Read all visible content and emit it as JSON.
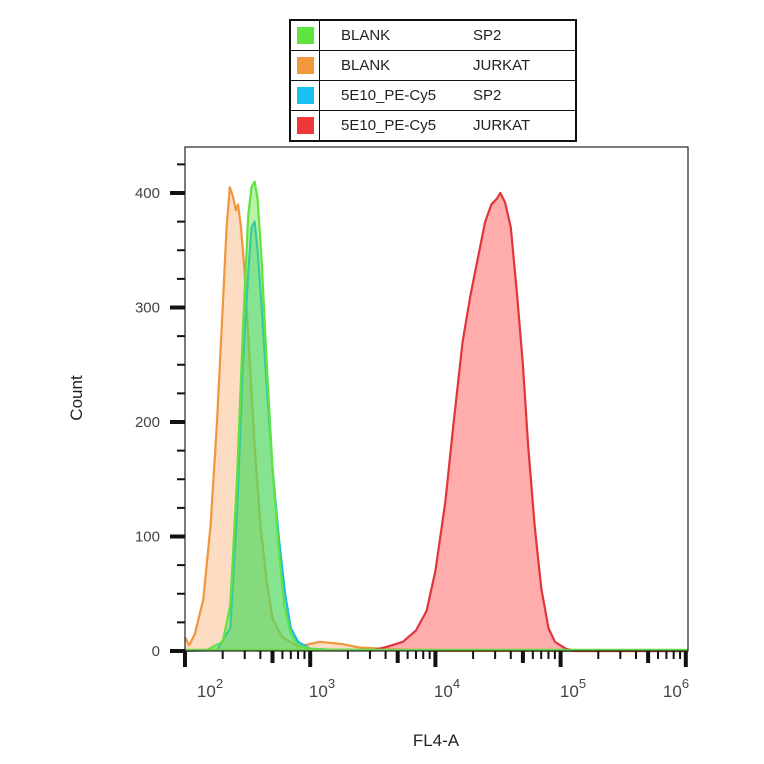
{
  "chart_data": {
    "type": "area",
    "title": "",
    "xlabel": "FL4-A",
    "ylabel": "Count",
    "xscale": "log",
    "xlim": [
      100,
      1000000
    ],
    "ylim": [
      0,
      440
    ],
    "x_ticks": [
      "10^2",
      "10^3",
      "10^4",
      "10^5",
      "10^6"
    ],
    "y_ticks": [
      0,
      100,
      200,
      300,
      400
    ],
    "grid": false,
    "legend_position": "top",
    "series": [
      {
        "name": "BLANK SP2",
        "sample": "BLANK",
        "cell": "SP2",
        "color": "#5FE33F",
        "fill": "rgba(95,227,63,0.45)",
        "points": [
          [
            100,
            0
          ],
          [
            150,
            1
          ],
          [
            200,
            8
          ],
          [
            230,
            40
          ],
          [
            260,
            150
          ],
          [
            290,
            280
          ],
          [
            320,
            380
          ],
          [
            340,
            405
          ],
          [
            360,
            410
          ],
          [
            380,
            395
          ],
          [
            410,
            340
          ],
          [
            450,
            250
          ],
          [
            500,
            160
          ],
          [
            560,
            90
          ],
          [
            620,
            40
          ],
          [
            700,
            15
          ],
          [
            800,
            5
          ],
          [
            1000,
            2
          ],
          [
            1500,
            1
          ],
          [
            3000,
            1
          ],
          [
            1000000,
            0
          ]
        ]
      },
      {
        "name": "BLANK JURKAT",
        "sample": "BLANK",
        "cell": "JURKAT",
        "color": "#F0963C",
        "fill": "rgba(250,185,135,0.5)",
        "points": [
          [
            100,
            12
          ],
          [
            108,
            5
          ],
          [
            120,
            15
          ],
          [
            140,
            45
          ],
          [
            160,
            110
          ],
          [
            180,
            200
          ],
          [
            200,
            300
          ],
          [
            215,
            370
          ],
          [
            228,
            405
          ],
          [
            240,
            398
          ],
          [
            255,
            385
          ],
          [
            265,
            390
          ],
          [
            280,
            370
          ],
          [
            300,
            330
          ],
          [
            330,
            250
          ],
          [
            360,
            180
          ],
          [
            400,
            110
          ],
          [
            450,
            60
          ],
          [
            500,
            28
          ],
          [
            600,
            12
          ],
          [
            800,
            4
          ],
          [
            1200,
            8
          ],
          [
            1800,
            6
          ],
          [
            2500,
            3
          ],
          [
            4000,
            2
          ],
          [
            10000,
            0
          ],
          [
            1000000,
            0
          ]
        ]
      },
      {
        "name": "5E10_PE-Cy5 SP2",
        "sample": "5E10_PE-Cy5",
        "cell": "SP2",
        "color": "#1EB7E8",
        "fill": "rgba(60,200,160,0.45)",
        "points": [
          [
            100,
            0
          ],
          [
            180,
            1
          ],
          [
            230,
            20
          ],
          [
            260,
            120
          ],
          [
            290,
            250
          ],
          [
            320,
            330
          ],
          [
            340,
            370
          ],
          [
            360,
            375
          ],
          [
            380,
            350
          ],
          [
            410,
            300
          ],
          [
            450,
            230
          ],
          [
            500,
            160
          ],
          [
            560,
            100
          ],
          [
            630,
            50
          ],
          [
            700,
            20
          ],
          [
            800,
            8
          ],
          [
            1000,
            2
          ],
          [
            1500,
            1
          ],
          [
            1000000,
            0
          ]
        ]
      },
      {
        "name": "5E10_PE-Cy5 JURKAT",
        "sample": "5E10_PE-Cy5",
        "cell": "JURKAT",
        "color": "#E0353A",
        "fill": "rgba(255,140,140,0.72)",
        "points": [
          [
            3000,
            0
          ],
          [
            4200,
            4
          ],
          [
            5500,
            8
          ],
          [
            7000,
            18
          ],
          [
            8500,
            35
          ],
          [
            10000,
            70
          ],
          [
            12000,
            130
          ],
          [
            14000,
            200
          ],
          [
            16500,
            270
          ],
          [
            19000,
            310
          ],
          [
            22000,
            345
          ],
          [
            25000,
            375
          ],
          [
            28000,
            390
          ],
          [
            31000,
            395
          ],
          [
            33000,
            400
          ],
          [
            36000,
            392
          ],
          [
            40000,
            370
          ],
          [
            45000,
            310
          ],
          [
            50000,
            250
          ],
          [
            55000,
            180
          ],
          [
            62000,
            110
          ],
          [
            70000,
            55
          ],
          [
            80000,
            20
          ],
          [
            90000,
            8
          ],
          [
            110000,
            2
          ],
          [
            130000,
            0
          ],
          [
            1000000,
            0
          ]
        ]
      }
    ]
  },
  "legend": {
    "rows": [
      {
        "sample": "BLANK",
        "cell": "SP2",
        "color": "#5FE33F"
      },
      {
        "sample": "BLANK",
        "cell": "JURKAT",
        "color": "#F2973D"
      },
      {
        "sample": "5E10_PE-Cy5",
        "cell": "SP2",
        "color": "#17C2F2"
      },
      {
        "sample": "5E10_PE-Cy5",
        "cell": "JURKAT",
        "color": "#F0383C"
      }
    ]
  },
  "axes": {
    "x_title": "FL4-A",
    "y_title": "Count",
    "y_labels": [
      "0",
      "100",
      "200",
      "300",
      "400"
    ],
    "x_labels": [
      {
        "base": "10",
        "exp": "2"
      },
      {
        "base": "10",
        "exp": "3"
      },
      {
        "base": "10",
        "exp": "4"
      },
      {
        "base": "10",
        "exp": "5"
      },
      {
        "base": "10",
        "exp": "6"
      }
    ]
  }
}
